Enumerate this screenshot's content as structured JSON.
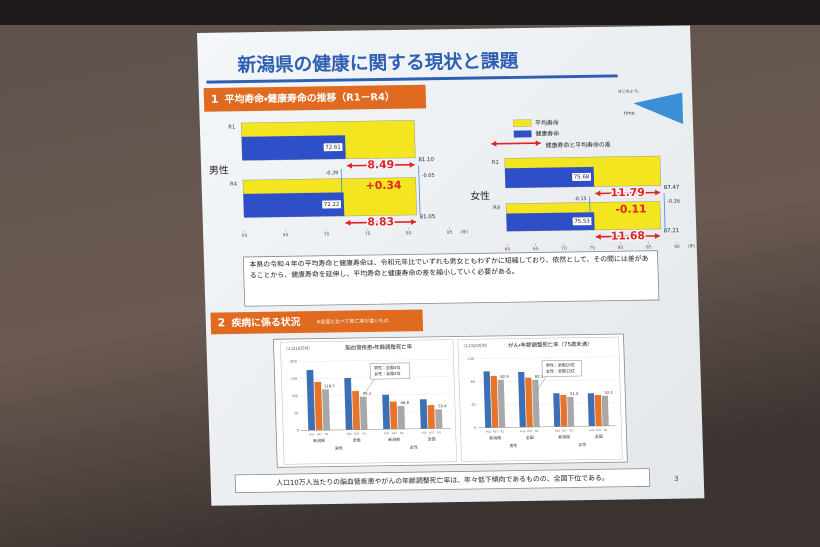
{
  "slide": {
    "title": "新潟県の健康に関する現状と課題",
    "logo": [
      "はじめよう。",
      "time"
    ],
    "page_number": "3",
    "section1": {
      "number": "1",
      "heading": "平均寿命・健康寿命の推移（R1－R4）"
    },
    "legend": {
      "average": {
        "label": "平均寿命",
        "color": "#f3e620"
      },
      "healthy": {
        "label": "健康寿命",
        "color": "#2f4fc8"
      },
      "gap": {
        "label": "健康寿命と平均寿命の差",
        "color": "#e02424"
      }
    },
    "life_charts": [
      {
        "label": "男性",
        "xlim": [
          60,
          85
        ],
        "xticks": [
          60,
          65,
          70,
          75,
          80,
          85
        ],
        "unit": "（年）",
        "rows": [
          {
            "label": "R1",
            "average": 81.1,
            "average_label": "81.10",
            "healthy": 72.61,
            "gap": 8.49
          },
          {
            "label": "R4",
            "average": 81.05,
            "healthy": 72.22,
            "gap": 8.83
          }
        ],
        "change_healthy": -0.39,
        "change_average": -0.05,
        "change_gap": 0.34,
        "change_gap_label": "+0.34"
      },
      {
        "label": "女性",
        "xlim": [
          60,
          90
        ],
        "xticks": [
          60,
          65,
          70,
          75,
          80,
          85,
          90
        ],
        "unit": "（年）",
        "rows": [
          {
            "label": "R1",
            "average": 87.47,
            "healthy": 75.68,
            "gap": 11.79
          },
          {
            "label": "R4",
            "average": 87.21,
            "healthy": 75.53,
            "gap": 11.68
          }
        ],
        "change_healthy": -0.15,
        "change_average": -0.26,
        "change_gap": -0.11
      }
    ],
    "note": "本県の令和４年の平均寿命と健康寿命は、令和元年比でいずれも男女ともわずかに短縮しており、依然として、その間には差があることから、健康寿命を延伸し、平均寿命と健康寿命の差を縮小していく必要がある。",
    "section2": {
      "number": "2",
      "heading": "疾病に係る状況",
      "note": "※全国と比べて死亡率が高いもの"
    },
    "disease_charts": [
      {
        "title": "脳血管疾患・年齢調整死亡率",
        "unit": "（人口10万対）",
        "ylim": [
          0,
          200
        ],
        "yticks": [
          0,
          50,
          100,
          150,
          200
        ],
        "periods": [
          "H22",
          "H27",
          "R2"
        ],
        "colors": [
          "#3d6fb6",
          "#e8742a",
          "#a8a8a8"
        ],
        "sexes": [
          "男性",
          "女性"
        ],
        "groups": [
          {
            "area": "新潟県",
            "values": [
              175,
              140,
              118.3
            ]
          },
          {
            "area": "全国",
            "values": [
              150,
              112,
              95.3
            ]
          },
          {
            "area": "新潟県",
            "values": [
              100,
              80,
              66.8
            ]
          },
          {
            "area": "全国",
            "values": [
              85,
              68,
              55.4
            ]
          }
        ],
        "callout": [
          "男性：全国4位",
          "女性：全国3位"
        ]
      },
      {
        "title": "がん・年齢調整死亡率（75歳未満）",
        "unit": "（人口10万対）",
        "ylim": [
          0,
          120
        ],
        "yticks": [
          0,
          40,
          80,
          120
        ],
        "periods": [
          "H22",
          "H27",
          "R2"
        ],
        "colors": [
          "#3d6fb6",
          "#e8742a",
          "#a8a8a8"
        ],
        "sexes": [
          "男性",
          "女性"
        ],
        "groups": [
          {
            "area": "新潟県",
            "values": [
              98,
              90,
              82.9
            ]
          },
          {
            "area": "全国",
            "values": [
              96,
              86,
              82.1
            ]
          },
          {
            "area": "新潟県",
            "values": [
              58,
              55,
              51.4
            ]
          },
          {
            "area": "全国",
            "values": [
              57,
              54,
              52.3
            ]
          }
        ],
        "callout": [
          "男性：全国10位",
          "女性：全国12位"
        ]
      }
    ],
    "summary": "人口10万人当たりの脳血管疾患やがんの年齢調整死亡率は、年々低下傾向であるものの、全国下位である。"
  }
}
